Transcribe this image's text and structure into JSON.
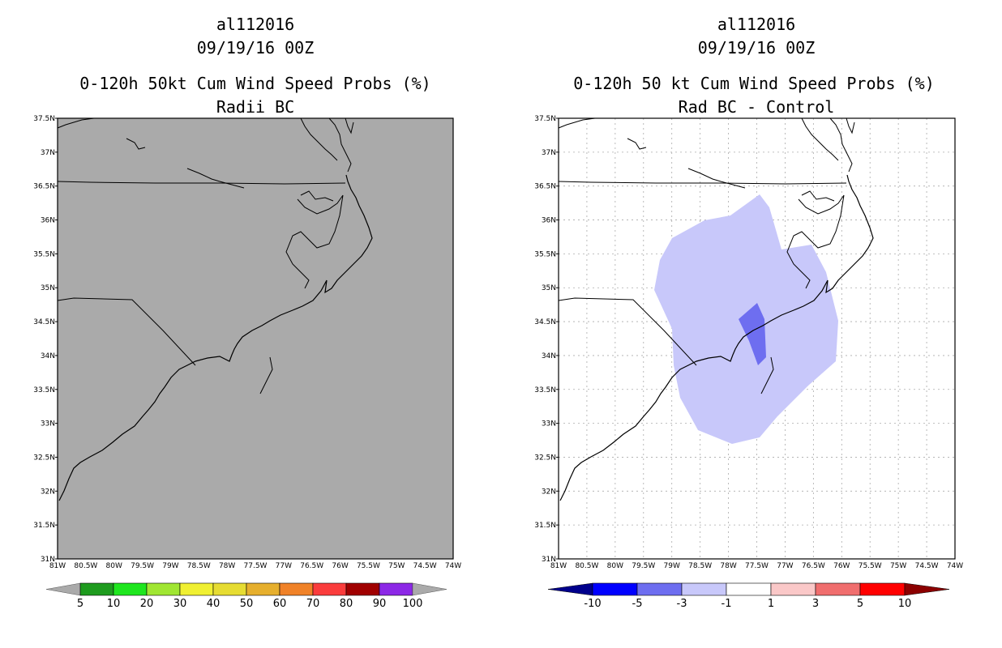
{
  "left_panel": {
    "storm_id": "al112016",
    "datetime": "09/19/16 00Z",
    "title": "0-120h 50kt Cum Wind Speed Probs (%)",
    "subtitle": "Radii BC",
    "colorbar_labels": [
      "5",
      "10",
      "20",
      "30",
      "40",
      "50",
      "60",
      "70",
      "80",
      "90",
      "100"
    ],
    "colorbar_colors": [
      "#1e9b1e",
      "#1ee61e",
      "#a0e632",
      "#f0f032",
      "#e6dc32",
      "#e6af2d",
      "#f08228",
      "#fa3c3c",
      "#a00000",
      "#8c28e6"
    ],
    "fill_color": "#aaaaaa"
  },
  "right_panel": {
    "storm_id": "al112016",
    "datetime": "09/19/16 00Z",
    "title": "0-120h 50 kt Cum Wind Speed Probs (%)",
    "subtitle": "Rad BC - Control",
    "colorbar_labels": [
      "-10",
      "-5",
      "-3",
      "-1",
      "1",
      "3",
      "5",
      "10"
    ],
    "colorbar_colors": [
      "#00008c",
      "#0000ff",
      "#6e6ef0",
      "#c8c8fa",
      "#ffffff",
      "#fac8c8",
      "#f06e6e",
      "#ff0000",
      "#8c0000"
    ],
    "light_fill": "#c8c8fa",
    "dark_fill": "#6e6ef0"
  },
  "axes": {
    "lat_labels": [
      "37.5N",
      "37N",
      "36.5N",
      "36N",
      "35.5N",
      "35N",
      "34.5N",
      "34N",
      "33.5N",
      "33N",
      "32.5N",
      "32N",
      "31.5N",
      "31N"
    ],
    "lon_labels": [
      "81W",
      "80.5W",
      "80W",
      "79.5W",
      "79W",
      "78.5W",
      "78W",
      "77.5W",
      "77W",
      "76.5W",
      "76W",
      "75.5W",
      "75W",
      "74.5W",
      "74W"
    ]
  }
}
